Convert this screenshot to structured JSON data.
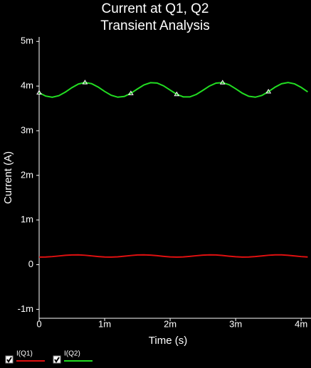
{
  "chart_data": {
    "type": "line",
    "title": "Current at Q1, Q2",
    "subtitle": "Transient Analysis",
    "x_label": "Time (s)",
    "y_label": "Current (A)",
    "x": [
      0,
      0.0001,
      0.0002,
      0.0003,
      0.0004,
      0.0005,
      0.0006,
      0.0007,
      0.0008,
      0.0009,
      0.001,
      0.0011,
      0.0012,
      0.0013,
      0.0014,
      0.0015,
      0.0016,
      0.0017,
      0.0018,
      0.0019,
      0.002,
      0.0021,
      0.0022,
      0.0023,
      0.0024,
      0.0025,
      0.0026,
      0.0027,
      0.0028,
      0.0029,
      0.003,
      0.0031,
      0.0032,
      0.0033,
      0.0034,
      0.0035,
      0.0036,
      0.0037,
      0.0038,
      0.0039,
      0.004,
      0.0041
    ],
    "series": [
      {
        "name": "I(Q1)",
        "color": "#e01010",
        "values": [
          0.000171,
          0.000172,
          0.000181,
          0.000195,
          0.000209,
          0.000218,
          0.000219,
          0.000211,
          0.000197,
          0.000183,
          0.000172,
          0.00017,
          0.000177,
          0.00019,
          0.000205,
          0.000217,
          0.00022,
          0.000214,
          0.000202,
          0.000187,
          0.000175,
          0.00017,
          0.000174,
          0.000186,
          0.000201,
          0.000214,
          0.00022,
          0.000217,
          0.000206,
          0.000191,
          0.000178,
          0.000171,
          0.000172,
          0.000182,
          0.000196,
          0.000211,
          0.000219,
          0.000219,
          0.00021,
          0.000196,
          0.000181,
          0.000172
        ]
      },
      {
        "name": "I(Q2)",
        "color": "#22dd22",
        "values": [
          0.003851,
          0.003776,
          0.00375,
          0.003784,
          0.003865,
          0.003965,
          0.004046,
          0.00408,
          0.004054,
          0.003979,
          0.00388,
          0.003794,
          0.003751,
          0.003768,
          0.003838,
          0.003935,
          0.004025,
          0.004076,
          0.004068,
          0.004005,
          0.00391,
          0.003816,
          0.003758,
          0.003757,
          0.003813,
          0.003905,
          0.004001,
          0.004066,
          0.004077,
          0.004029,
          0.00394,
          0.003842,
          0.003771,
          0.003751,
          0.00379,
          0.003875,
          0.003974,
          0.004052,
          0.00408,
          0.004049,
          0.00397,
          0.00387
        ]
      }
    ],
    "xlim": [
      0,
      0.00415
    ],
    "ylim": [
      -0.0012,
      0.0051
    ],
    "xticks": [
      0,
      {
        "value": 0.001,
        "label": "1m"
      },
      {
        "value": 0.002,
        "label": "2m"
      },
      {
        "value": 0.003,
        "label": "3m"
      },
      {
        "value": 0.004,
        "label": "4m"
      }
    ],
    "yticks": [
      {
        "value": -0.001,
        "label": "-1m"
      },
      0,
      {
        "value": 0.001,
        "label": "1m"
      },
      {
        "value": 0.002,
        "label": "2m"
      },
      {
        "value": 0.003,
        "label": "3m"
      },
      {
        "value": 0.004,
        "label": "4m"
      },
      {
        "value": 0.005,
        "label": "5m"
      }
    ],
    "grid": false
  }
}
